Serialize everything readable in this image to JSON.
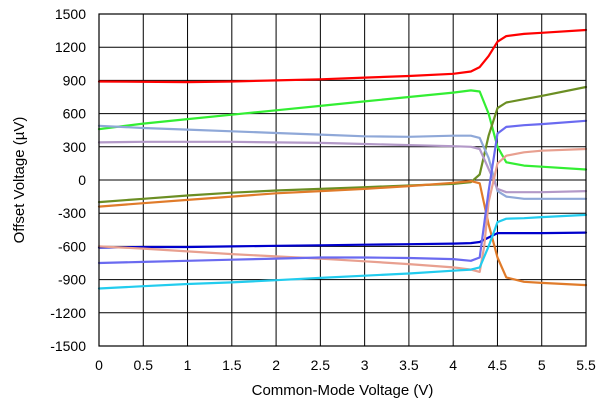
{
  "chart_data": {
    "type": "line",
    "title": "",
    "xlabel": "Common-Mode Voltage (V)",
    "ylabel": "Offset Voltage (µV)",
    "xlim": [
      0,
      5.5
    ],
    "ylim": [
      -1500,
      1500
    ],
    "x_ticks": [
      0,
      0.5,
      1,
      1.5,
      2,
      2.5,
      3,
      3.5,
      4,
      4.5,
      5,
      5.5
    ],
    "x_tick_labels": [
      "0",
      "0.5",
      "1",
      "1.5",
      "2",
      "2.5",
      "3",
      "3.5",
      "4",
      "4.5",
      "5",
      "5.5"
    ],
    "y_ticks": [
      -1500,
      -1200,
      -900,
      -600,
      -300,
      0,
      300,
      600,
      900,
      1200,
      1500
    ],
    "y_tick_labels": [
      "-1500",
      "-1200",
      "-900",
      "-600",
      "-300",
      "0",
      "300",
      "600",
      "900",
      "1200",
      "1500"
    ],
    "grid": true,
    "legend": "none",
    "series": [
      {
        "color": "#ff0000",
        "points": [
          [
            0,
            890
          ],
          [
            1,
            885
          ],
          [
            1.5,
            890
          ],
          [
            2,
            900
          ],
          [
            2.5,
            910
          ],
          [
            3,
            925
          ],
          [
            3.5,
            940
          ],
          [
            4,
            960
          ],
          [
            4.2,
            980
          ],
          [
            4.3,
            1020
          ],
          [
            4.4,
            1120
          ],
          [
            4.5,
            1250
          ],
          [
            4.6,
            1300
          ],
          [
            4.8,
            1320
          ],
          [
            5,
            1330
          ],
          [
            5.5,
            1355
          ]
        ]
      },
      {
        "color": "#33ee33",
        "points": [
          [
            0,
            460
          ],
          [
            0.5,
            510
          ],
          [
            1,
            550
          ],
          [
            1.5,
            590
          ],
          [
            2,
            630
          ],
          [
            2.5,
            670
          ],
          [
            3,
            710
          ],
          [
            3.5,
            750
          ],
          [
            4,
            790
          ],
          [
            4.2,
            810
          ],
          [
            4.3,
            800
          ],
          [
            4.4,
            600
          ],
          [
            4.5,
            300
          ],
          [
            4.6,
            160
          ],
          [
            4.8,
            130
          ],
          [
            5,
            120
          ],
          [
            5.5,
            95
          ]
        ]
      },
      {
        "color": "#6b8e23",
        "points": [
          [
            0,
            -200
          ],
          [
            0.5,
            -170
          ],
          [
            1,
            -140
          ],
          [
            1.5,
            -115
          ],
          [
            2,
            -95
          ],
          [
            2.5,
            -80
          ],
          [
            3,
            -65
          ],
          [
            3.5,
            -50
          ],
          [
            4,
            -35
          ],
          [
            4.2,
            -20
          ],
          [
            4.3,
            50
          ],
          [
            4.4,
            400
          ],
          [
            4.5,
            650
          ],
          [
            4.6,
            700
          ],
          [
            4.8,
            730
          ],
          [
            5,
            760
          ],
          [
            5.5,
            840
          ]
        ]
      },
      {
        "color": "#8fa8d8",
        "points": [
          [
            0,
            490
          ],
          [
            0.5,
            470
          ],
          [
            1,
            455
          ],
          [
            1.5,
            440
          ],
          [
            2,
            425
          ],
          [
            2.5,
            410
          ],
          [
            3,
            395
          ],
          [
            3.5,
            390
          ],
          [
            4,
            400
          ],
          [
            4.2,
            400
          ],
          [
            4.3,
            380
          ],
          [
            4.4,
            200
          ],
          [
            4.5,
            -100
          ],
          [
            4.6,
            -150
          ],
          [
            4.8,
            -170
          ],
          [
            5,
            -170
          ],
          [
            5.5,
            -170
          ]
        ]
      },
      {
        "color": "#b399c8",
        "points": [
          [
            0,
            340
          ],
          [
            0.5,
            345
          ],
          [
            1,
            345
          ],
          [
            1.5,
            345
          ],
          [
            2,
            340
          ],
          [
            2.5,
            335
          ],
          [
            3,
            325
          ],
          [
            3.5,
            315
          ],
          [
            4,
            305
          ],
          [
            4.2,
            300
          ],
          [
            4.3,
            280
          ],
          [
            4.4,
            100
          ],
          [
            4.5,
            -80
          ],
          [
            4.6,
            -110
          ],
          [
            4.8,
            -110
          ],
          [
            5,
            -110
          ],
          [
            5.5,
            -100
          ]
        ]
      },
      {
        "color": "#e07b2a",
        "points": [
          [
            0,
            -240
          ],
          [
            0.5,
            -210
          ],
          [
            1,
            -180
          ],
          [
            1.5,
            -150
          ],
          [
            2,
            -120
          ],
          [
            2.5,
            -100
          ],
          [
            3,
            -80
          ],
          [
            3.5,
            -55
          ],
          [
            4,
            -25
          ],
          [
            4.2,
            -10
          ],
          [
            4.3,
            -30
          ],
          [
            4.4,
            -400
          ],
          [
            4.5,
            -700
          ],
          [
            4.6,
            -880
          ],
          [
            4.8,
            -920
          ],
          [
            5,
            -930
          ],
          [
            5.5,
            -950
          ]
        ]
      },
      {
        "color": "#0000cc",
        "points": [
          [
            0,
            -610
          ],
          [
            0.5,
            -605
          ],
          [
            1,
            -605
          ],
          [
            1.5,
            -600
          ],
          [
            2,
            -595
          ],
          [
            2.5,
            -590
          ],
          [
            3,
            -585
          ],
          [
            3.5,
            -580
          ],
          [
            4,
            -575
          ],
          [
            4.2,
            -570
          ],
          [
            4.3,
            -560
          ],
          [
            4.4,
            -520
          ],
          [
            4.5,
            -480
          ],
          [
            4.6,
            -480
          ],
          [
            5,
            -480
          ],
          [
            5.5,
            -475
          ]
        ]
      },
      {
        "color": "#e8a090",
        "points": [
          [
            0,
            -600
          ],
          [
            0.5,
            -620
          ],
          [
            1,
            -645
          ],
          [
            1.5,
            -670
          ],
          [
            2,
            -690
          ],
          [
            2.5,
            -710
          ],
          [
            3,
            -735
          ],
          [
            3.5,
            -760
          ],
          [
            4,
            -790
          ],
          [
            4.2,
            -810
          ],
          [
            4.3,
            -830
          ],
          [
            4.35,
            -600
          ],
          [
            4.4,
            -200
          ],
          [
            4.5,
            150
          ],
          [
            4.6,
            220
          ],
          [
            4.8,
            250
          ],
          [
            5,
            265
          ],
          [
            5.5,
            280
          ]
        ]
      },
      {
        "color": "#6a6af0",
        "points": [
          [
            0,
            -750
          ],
          [
            0.5,
            -740
          ],
          [
            1,
            -730
          ],
          [
            1.5,
            -720
          ],
          [
            2,
            -710
          ],
          [
            2.5,
            -700
          ],
          [
            3,
            -700
          ],
          [
            3.5,
            -705
          ],
          [
            4,
            -715
          ],
          [
            4.2,
            -730
          ],
          [
            4.3,
            -700
          ],
          [
            4.4,
            -100
          ],
          [
            4.5,
            420
          ],
          [
            4.6,
            480
          ],
          [
            4.8,
            495
          ],
          [
            5,
            505
          ],
          [
            5.5,
            535
          ]
        ]
      },
      {
        "color": "#22ccee",
        "points": [
          [
            0,
            -980
          ],
          [
            0.5,
            -960
          ],
          [
            1,
            -940
          ],
          [
            1.5,
            -925
          ],
          [
            2,
            -905
          ],
          [
            2.5,
            -885
          ],
          [
            3,
            -865
          ],
          [
            3.5,
            -845
          ],
          [
            4,
            -820
          ],
          [
            4.2,
            -810
          ],
          [
            4.3,
            -790
          ],
          [
            4.4,
            -600
          ],
          [
            4.5,
            -380
          ],
          [
            4.6,
            -350
          ],
          [
            4.8,
            -345
          ],
          [
            5,
            -335
          ],
          [
            5.5,
            -315
          ]
        ]
      }
    ]
  }
}
